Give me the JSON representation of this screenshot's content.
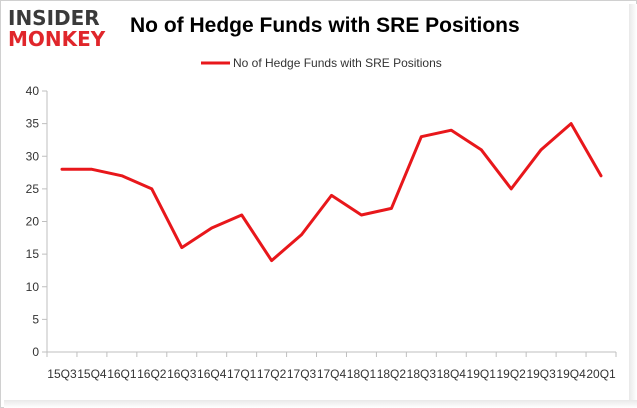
{
  "brand": {
    "line1": "INSIDER",
    "line2": "MONKEY",
    "color_primary": "#3a3a3a",
    "color_accent": "#e0262b"
  },
  "chart_data": {
    "type": "line",
    "title": "No of Hedge Funds with SRE Positions",
    "xlabel": "",
    "ylabel": "",
    "categories": [
      "15Q3",
      "15Q4",
      "16Q1",
      "16Q2",
      "16Q3",
      "16Q4",
      "17Q1",
      "17Q2",
      "17Q3",
      "17Q4",
      "18Q1",
      "18Q2",
      "18Q3",
      "18Q4",
      "19Q1",
      "19Q2",
      "19Q3",
      "19Q4",
      "20Q1"
    ],
    "series": [
      {
        "name": "No of Hedge Funds with SRE Positions",
        "color": "#e8171b",
        "values": [
          28,
          28,
          27,
          25,
          16,
          19,
          21,
          14,
          18,
          24,
          21,
          22,
          33,
          34,
          31,
          25,
          31,
          35,
          27
        ]
      }
    ],
    "ylim": [
      0,
      40
    ],
    "yticks": [
      0,
      5,
      10,
      15,
      20,
      25,
      30,
      35,
      40
    ],
    "grid": false,
    "legend": "top-center"
  }
}
